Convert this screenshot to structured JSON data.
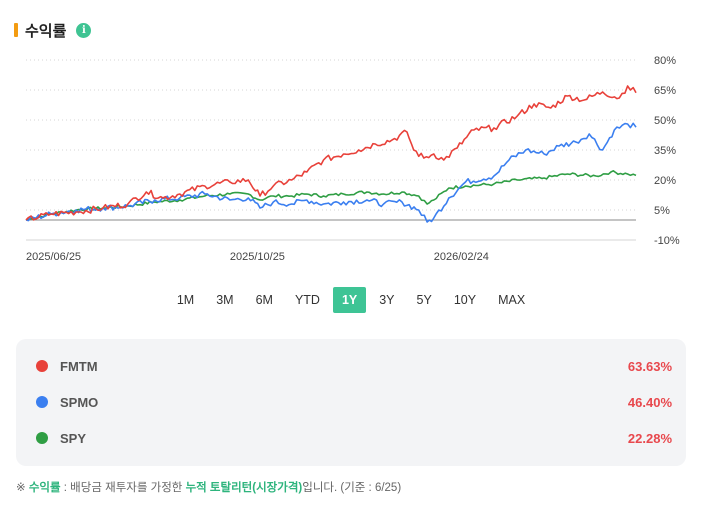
{
  "header": {
    "title": "수익률",
    "info_icon": "info-icon"
  },
  "chart_data": {
    "type": "line",
    "y_tick_labels": [
      "80%",
      "65%",
      "50%",
      "35%",
      "20%",
      "5%",
      "-10%"
    ],
    "y_ticks": [
      80,
      65,
      50,
      35,
      20,
      5,
      -10
    ],
    "ylim": [
      -10,
      80
    ],
    "zero_line": 0,
    "x_tick_labels": [
      "2025/06/25",
      "2025/10/25",
      "2026/02/24"
    ],
    "x_ticks": [
      "2025-06-25",
      "2025-10-25",
      "2026-02-24"
    ],
    "x_range": [
      "2025-06-25",
      "2026-06-25"
    ],
    "grid": "horizontal dotted",
    "series": [
      {
        "name": "FMTM",
        "color": "#e8413a",
        "points": [
          [
            "2025-06-25",
            0
          ],
          [
            "2025-07-10",
            3
          ],
          [
            "2025-07-25",
            4
          ],
          [
            "2025-08-10",
            6
          ],
          [
            "2025-08-25",
            8
          ],
          [
            "2025-09-05",
            14
          ],
          [
            "2025-09-15",
            11
          ],
          [
            "2025-09-25",
            13
          ],
          [
            "2025-10-10",
            17
          ],
          [
            "2025-10-25",
            19
          ],
          [
            "2025-11-05",
            20
          ],
          [
            "2025-11-12",
            12
          ],
          [
            "2025-11-20",
            17
          ],
          [
            "2025-12-01",
            20
          ],
          [
            "2025-12-10",
            24
          ],
          [
            "2025-12-20",
            30
          ],
          [
            "2026-01-01",
            33
          ],
          [
            "2026-01-10",
            35
          ],
          [
            "2026-01-20",
            38
          ],
          [
            "2026-01-30",
            40
          ],
          [
            "2026-02-08",
            44
          ],
          [
            "2026-02-12",
            35
          ],
          [
            "2026-02-18",
            31
          ],
          [
            "2026-02-24",
            33
          ],
          [
            "2026-03-02",
            30
          ],
          [
            "2026-03-10",
            36
          ],
          [
            "2026-03-20",
            45
          ],
          [
            "2026-04-01",
            46
          ],
          [
            "2026-04-15",
            52
          ],
          [
            "2026-04-25",
            58
          ],
          [
            "2026-05-05",
            56
          ],
          [
            "2026-05-15",
            62
          ],
          [
            "2026-05-25",
            60
          ],
          [
            "2026-06-05",
            64
          ],
          [
            "2026-06-15",
            61
          ],
          [
            "2026-06-20",
            67
          ],
          [
            "2026-06-25",
            63.63
          ]
        ]
      },
      {
        "name": "SPMO",
        "color": "#3b7ff0",
        "points": [
          [
            "2025-06-25",
            0
          ],
          [
            "2025-07-10",
            3
          ],
          [
            "2025-07-25",
            5
          ],
          [
            "2025-08-10",
            6
          ],
          [
            "2025-08-25",
            7
          ],
          [
            "2025-09-10",
            10
          ],
          [
            "2025-09-25",
            11
          ],
          [
            "2025-10-10",
            13
          ],
          [
            "2025-10-25",
            10
          ],
          [
            "2025-11-05",
            11
          ],
          [
            "2025-11-12",
            6
          ],
          [
            "2025-11-20",
            9
          ],
          [
            "2025-12-01",
            8
          ],
          [
            "2025-12-10",
            10
          ],
          [
            "2025-12-20",
            8
          ],
          [
            "2026-01-01",
            9
          ],
          [
            "2026-01-15",
            10
          ],
          [
            "2026-01-25",
            8
          ],
          [
            "2026-02-05",
            9
          ],
          [
            "2026-02-15",
            5
          ],
          [
            "2026-02-20",
            -1
          ],
          [
            "2026-02-24",
            1
          ],
          [
            "2026-03-05",
            11
          ],
          [
            "2026-03-15",
            19
          ],
          [
            "2026-04-01",
            22
          ],
          [
            "2026-04-10",
            30
          ],
          [
            "2026-04-20",
            35
          ],
          [
            "2026-05-01",
            33
          ],
          [
            "2026-05-10",
            37
          ],
          [
            "2026-05-20",
            39
          ],
          [
            "2026-05-28",
            43
          ],
          [
            "2026-06-05",
            35
          ],
          [
            "2026-06-12",
            45
          ],
          [
            "2026-06-20",
            48
          ],
          [
            "2026-06-25",
            46.4
          ]
        ]
      },
      {
        "name": "SPY",
        "color": "#2f9e44",
        "points": [
          [
            "2025-06-25",
            0
          ],
          [
            "2025-07-10",
            3
          ],
          [
            "2025-07-25",
            5
          ],
          [
            "2025-08-10",
            6
          ],
          [
            "2025-08-25",
            7
          ],
          [
            "2025-09-10",
            9
          ],
          [
            "2025-09-25",
            10
          ],
          [
            "2025-10-10",
            12
          ],
          [
            "2025-10-25",
            13
          ],
          [
            "2025-11-05",
            13
          ],
          [
            "2025-11-12",
            10
          ],
          [
            "2025-11-20",
            12
          ],
          [
            "2025-12-01",
            12
          ],
          [
            "2025-12-10",
            13
          ],
          [
            "2025-12-20",
            12
          ],
          [
            "2026-01-01",
            13
          ],
          [
            "2026-01-15",
            14
          ],
          [
            "2026-01-25",
            13
          ],
          [
            "2026-02-05",
            14
          ],
          [
            "2026-02-15",
            12
          ],
          [
            "2026-02-20",
            8
          ],
          [
            "2026-02-24",
            10
          ],
          [
            "2026-03-05",
            16
          ],
          [
            "2026-03-15",
            17
          ],
          [
            "2026-04-01",
            18
          ],
          [
            "2026-04-15",
            20
          ],
          [
            "2026-05-01",
            21
          ],
          [
            "2026-05-15",
            23
          ],
          [
            "2026-06-01",
            22
          ],
          [
            "2026-06-10",
            24
          ],
          [
            "2026-06-20",
            23
          ],
          [
            "2026-06-25",
            22.28
          ]
        ]
      }
    ]
  },
  "range_tabs": [
    "1M",
    "3M",
    "6M",
    "YTD",
    "1Y",
    "3Y",
    "5Y",
    "10Y",
    "MAX"
  ],
  "active_tab": "1Y",
  "legend": [
    {
      "name": "FMTM",
      "value": "63.63%",
      "color": "#e8413a"
    },
    {
      "name": "SPMO",
      "value": "46.40%",
      "color": "#3b7ff0"
    },
    {
      "name": "SPY",
      "value": "22.28%",
      "color": "#2f9e44"
    }
  ],
  "footnote": {
    "prefix": "※ ",
    "label": "수익률",
    "mid": " : 배당금 재투자를 가정한 ",
    "highlight": "누적 토탈리턴(시장가격)",
    "suffix": "입니다. (기준 : 6/25)"
  }
}
